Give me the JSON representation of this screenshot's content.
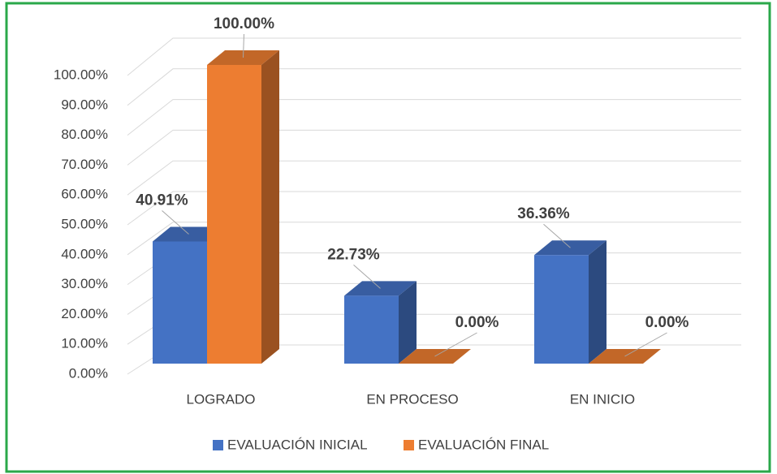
{
  "chart_data": {
    "type": "bar3d",
    "categories": [
      "LOGRADO",
      "EN PROCESO",
      "EN INICIO"
    ],
    "series": [
      {
        "name": "EVALUACIÓN INICIAL",
        "color": "#4472c4",
        "values": [
          40.91,
          22.73,
          36.36
        ],
        "value_labels": [
          "40.91%",
          "22.73%",
          "36.36%"
        ]
      },
      {
        "name": "EVALUACIÓN FINAL",
        "color": "#ed7d31",
        "values": [
          100,
          0,
          0
        ],
        "value_labels": [
          "100.00%",
          "0.00%",
          "0.00%"
        ]
      }
    ],
    "ylim": [
      0,
      100
    ],
    "yticks": [
      {
        "value": 0,
        "label": "0.00%"
      },
      {
        "value": 10,
        "label": "10.00%"
      },
      {
        "value": 20,
        "label": "20.00%"
      },
      {
        "value": 30,
        "label": "30.00%"
      },
      {
        "value": 40,
        "label": "40.00%"
      },
      {
        "value": 50,
        "label": "50.00%"
      },
      {
        "value": 60,
        "label": "60.00%"
      },
      {
        "value": 70,
        "label": "70.00%"
      },
      {
        "value": 80,
        "label": "80.00%"
      },
      {
        "value": 90,
        "label": "90.00%"
      },
      {
        "value": 100,
        "label": "100.00%"
      }
    ],
    "grid": true,
    "legend": "bottom"
  }
}
